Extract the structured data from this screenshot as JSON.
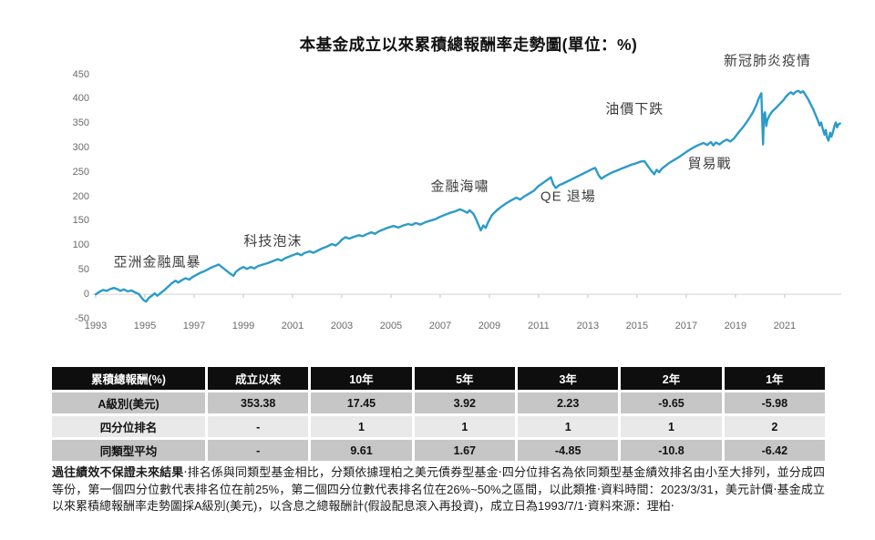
{
  "title": "本基金成立以來累積總報酬率走勢圖(單位：%)",
  "colors": {
    "line": "#2c9bc9",
    "zero_line": "#d8d8d8",
    "tick": "#c2c2c2",
    "axis_text": "#6b6b6b",
    "annotation_text": "#3d3d3d",
    "table_header_bg": "#0e0e0e",
    "table_row_dark": "#c6c6c6",
    "table_row_light": "#e9e9e9"
  },
  "chart_data": {
    "type": "line",
    "title": "本基金成立以來累積總報酬率走勢圖(單位：%)",
    "xlabel": "",
    "ylabel": "累積總報酬(%)",
    "x_range": [
      1993,
      2023.3
    ],
    "y_range": [
      -50,
      450
    ],
    "grid": false,
    "legend": "none",
    "y_ticks": [
      450,
      400,
      350,
      300,
      250,
      200,
      150,
      100,
      50,
      0,
      -50
    ],
    "x_ticks": [
      1993,
      1995,
      1997,
      1999,
      2001,
      2003,
      2005,
      2007,
      2009,
      2011,
      2013,
      2015,
      2017,
      2019,
      2021
    ],
    "series": [
      {
        "name": "A級別(美元)累積總報酬率",
        "points": [
          [
            1993.0,
            0
          ],
          [
            1993.15,
            5
          ],
          [
            1993.3,
            9
          ],
          [
            1993.45,
            7
          ],
          [
            1993.6,
            11
          ],
          [
            1993.75,
            13
          ],
          [
            1993.9,
            10
          ],
          [
            1994.0,
            7
          ],
          [
            1994.15,
            10
          ],
          [
            1994.3,
            6
          ],
          [
            1994.45,
            8
          ],
          [
            1994.6,
            4
          ],
          [
            1994.75,
            1
          ],
          [
            1994.85,
            -6
          ],
          [
            1994.95,
            -12
          ],
          [
            1995.05,
            -15
          ],
          [
            1995.15,
            -8
          ],
          [
            1995.3,
            -2
          ],
          [
            1995.4,
            2
          ],
          [
            1995.5,
            -3
          ],
          [
            1995.65,
            3
          ],
          [
            1995.8,
            9
          ],
          [
            1995.95,
            16
          ],
          [
            1996.1,
            23
          ],
          [
            1996.25,
            28
          ],
          [
            1996.35,
            24
          ],
          [
            1996.5,
            29
          ],
          [
            1996.65,
            33
          ],
          [
            1996.8,
            30
          ],
          [
            1996.95,
            36
          ],
          [
            1997.1,
            40
          ],
          [
            1997.25,
            44
          ],
          [
            1997.4,
            47
          ],
          [
            1997.55,
            51
          ],
          [
            1997.7,
            55
          ],
          [
            1997.85,
            58
          ],
          [
            1998.0,
            61
          ],
          [
            1998.15,
            55
          ],
          [
            1998.3,
            49
          ],
          [
            1998.45,
            43
          ],
          [
            1998.6,
            38
          ],
          [
            1998.7,
            46
          ],
          [
            1998.85,
            52
          ],
          [
            1999.0,
            56
          ],
          [
            1999.15,
            52
          ],
          [
            1999.3,
            56
          ],
          [
            1999.45,
            53
          ],
          [
            1999.6,
            58
          ],
          [
            1999.8,
            61
          ],
          [
            2000.0,
            64
          ],
          [
            2000.2,
            68
          ],
          [
            2000.4,
            72
          ],
          [
            2000.55,
            69
          ],
          [
            2000.7,
            74
          ],
          [
            2000.9,
            78
          ],
          [
            2001.0,
            80
          ],
          [
            2001.2,
            84
          ],
          [
            2001.35,
            80
          ],
          [
            2001.5,
            85
          ],
          [
            2001.7,
            88
          ],
          [
            2001.85,
            85
          ],
          [
            2002.0,
            89
          ],
          [
            2002.2,
            94
          ],
          [
            2002.4,
            98
          ],
          [
            2002.6,
            103
          ],
          [
            2002.75,
            100
          ],
          [
            2002.9,
            106
          ],
          [
            2003.0,
            112
          ],
          [
            2003.15,
            117
          ],
          [
            2003.3,
            114
          ],
          [
            2003.5,
            118
          ],
          [
            2003.7,
            121
          ],
          [
            2003.85,
            119
          ],
          [
            2004.0,
            123
          ],
          [
            2004.2,
            127
          ],
          [
            2004.35,
            124
          ],
          [
            2004.5,
            129
          ],
          [
            2004.7,
            133
          ],
          [
            2004.9,
            137
          ],
          [
            2005.1,
            140
          ],
          [
            2005.3,
            137
          ],
          [
            2005.5,
            141
          ],
          [
            2005.7,
            144
          ],
          [
            2005.85,
            142
          ],
          [
            2006.0,
            146
          ],
          [
            2006.2,
            143
          ],
          [
            2006.4,
            148
          ],
          [
            2006.6,
            151
          ],
          [
            2006.8,
            154
          ],
          [
            2007.0,
            159
          ],
          [
            2007.2,
            163
          ],
          [
            2007.4,
            167
          ],
          [
            2007.6,
            170
          ],
          [
            2007.8,
            174
          ],
          [
            2007.95,
            171
          ],
          [
            2008.1,
            167
          ],
          [
            2008.2,
            172
          ],
          [
            2008.35,
            165
          ],
          [
            2008.45,
            155
          ],
          [
            2008.55,
            143
          ],
          [
            2008.65,
            131
          ],
          [
            2008.75,
            141
          ],
          [
            2008.85,
            136
          ],
          [
            2008.95,
            148
          ],
          [
            2009.1,
            162
          ],
          [
            2009.3,
            172
          ],
          [
            2009.5,
            180
          ],
          [
            2009.7,
            187
          ],
          [
            2009.9,
            193
          ],
          [
            2010.1,
            198
          ],
          [
            2010.25,
            194
          ],
          [
            2010.4,
            200
          ],
          [
            2010.6,
            206
          ],
          [
            2010.8,
            212
          ],
          [
            2011.0,
            222
          ],
          [
            2011.2,
            229
          ],
          [
            2011.4,
            236
          ],
          [
            2011.5,
            240
          ],
          [
            2011.6,
            225
          ],
          [
            2011.7,
            218
          ],
          [
            2011.85,
            224
          ],
          [
            2012.0,
            227
          ],
          [
            2012.2,
            232
          ],
          [
            2012.4,
            237
          ],
          [
            2012.6,
            242
          ],
          [
            2012.8,
            247
          ],
          [
            2013.0,
            252
          ],
          [
            2013.2,
            257
          ],
          [
            2013.3,
            259
          ],
          [
            2013.45,
            243
          ],
          [
            2013.55,
            237
          ],
          [
            2013.7,
            242
          ],
          [
            2013.85,
            246
          ],
          [
            2014.0,
            250
          ],
          [
            2014.2,
            254
          ],
          [
            2014.4,
            258
          ],
          [
            2014.6,
            262
          ],
          [
            2014.8,
            266
          ],
          [
            2015.0,
            269
          ],
          [
            2015.15,
            272
          ],
          [
            2015.3,
            273
          ],
          [
            2015.45,
            262
          ],
          [
            2015.6,
            252
          ],
          [
            2015.7,
            246
          ],
          [
            2015.8,
            255
          ],
          [
            2015.9,
            250
          ],
          [
            2016.0,
            257
          ],
          [
            2016.15,
            263
          ],
          [
            2016.3,
            269
          ],
          [
            2016.5,
            275
          ],
          [
            2016.7,
            281
          ],
          [
            2016.9,
            288
          ],
          [
            2017.1,
            295
          ],
          [
            2017.3,
            301
          ],
          [
            2017.5,
            306
          ],
          [
            2017.7,
            310
          ],
          [
            2017.85,
            306
          ],
          [
            2018.0,
            312
          ],
          [
            2018.1,
            305
          ],
          [
            2018.2,
            311
          ],
          [
            2018.35,
            307
          ],
          [
            2018.5,
            313
          ],
          [
            2018.65,
            317
          ],
          [
            2018.8,
            313
          ],
          [
            2018.95,
            320
          ],
          [
            2019.1,
            330
          ],
          [
            2019.3,
            342
          ],
          [
            2019.5,
            356
          ],
          [
            2019.7,
            372
          ],
          [
            2019.85,
            388
          ],
          [
            2019.95,
            402
          ],
          [
            2020.05,
            412
          ],
          [
            2020.12,
            307
          ],
          [
            2020.16,
            368
          ],
          [
            2020.2,
            373
          ],
          [
            2020.25,
            345
          ],
          [
            2020.3,
            358
          ],
          [
            2020.4,
            368
          ],
          [
            2020.5,
            375
          ],
          [
            2020.65,
            382
          ],
          [
            2020.8,
            390
          ],
          [
            2020.95,
            398
          ],
          [
            2021.05,
            405
          ],
          [
            2021.15,
            410
          ],
          [
            2021.25,
            414
          ],
          [
            2021.35,
            410
          ],
          [
            2021.45,
            415
          ],
          [
            2021.55,
            417
          ],
          [
            2021.65,
            413
          ],
          [
            2021.75,
            416
          ],
          [
            2021.85,
            408
          ],
          [
            2021.95,
            400
          ],
          [
            2022.05,
            390
          ],
          [
            2022.15,
            380
          ],
          [
            2022.25,
            368
          ],
          [
            2022.35,
            356
          ],
          [
            2022.42,
            346
          ],
          [
            2022.48,
            352
          ],
          [
            2022.55,
            338
          ],
          [
            2022.62,
            327
          ],
          [
            2022.67,
            337
          ],
          [
            2022.72,
            322
          ],
          [
            2022.78,
            315
          ],
          [
            2022.85,
            331
          ],
          [
            2022.9,
            323
          ],
          [
            2022.97,
            334
          ],
          [
            2023.03,
            346
          ],
          [
            2023.08,
            352
          ],
          [
            2023.13,
            342
          ],
          [
            2023.18,
            348
          ],
          [
            2023.25,
            350
          ]
        ]
      }
    ],
    "annotations": [
      {
        "id": "asian-financial-crisis",
        "label": "亞洲金融風暴",
        "year": 1995.5,
        "value": 68
      },
      {
        "id": "tech-bubble",
        "label": "科技泡沫",
        "year": 2000.2,
        "value": 110
      },
      {
        "id": "financial-tsunami",
        "label": "金融海嘯",
        "year": 2007.8,
        "value": 222
      },
      {
        "id": "qe-exit",
        "label": "QE 退場",
        "year": 2012.2,
        "value": 201
      },
      {
        "id": "oil-price-drop",
        "label": "油價下跌",
        "year": 2014.9,
        "value": 381
      },
      {
        "id": "trade-war",
        "label": "貿易戰",
        "year": 2017.95,
        "value": 269
      },
      {
        "id": "covid-pandemic",
        "label": "新冠肺炎疫情",
        "year": 2020.3,
        "value": 479
      }
    ]
  },
  "table": {
    "headers": [
      "累積總報酬(%)",
      "成立以來",
      "10年",
      "5年",
      "3年",
      "2年",
      "1年"
    ],
    "rows": [
      {
        "label": "A級別(美元)",
        "values": [
          "353.38",
          "17.45",
          "3.92",
          "2.23",
          "-9.65",
          "-5.98"
        ]
      },
      {
        "label": "四分位排名",
        "values": [
          "-",
          "1",
          "1",
          "1",
          "1",
          "2"
        ]
      },
      {
        "label": "同類型平均",
        "values": [
          "-",
          "9.61",
          "1.67",
          "-4.85",
          "-10.8",
          "-6.42"
        ]
      }
    ]
  },
  "disclaimer": {
    "bold_intro": "過往績效不保證未來結果",
    "body": "‧排名係與同類型基金相比，分類依據理柏之美元債券型基金‧四分位排名為依同類型基金績效排名由小至大排列，並分成四等份，第一個四分位數代表排名位在前25%，第二個四分位數代表排名位在26%~50%之區間，以此類推‧資料時間：2023/3/31，美元計價‧基金成立以來累積總報酬率走勢圖採A級別(美元)，以含息之總報酬計(假設配息滾入再投資)，成立日為1993/7/1‧資料來源：理柏‧"
  }
}
